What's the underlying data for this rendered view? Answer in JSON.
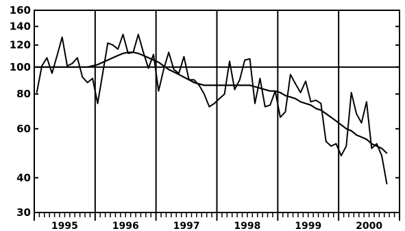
{
  "chart_data": {
    "type": "line",
    "title": "",
    "xlabel": "",
    "ylabel": "",
    "y_scale": "log",
    "ylim": [
      30,
      160
    ],
    "y_ticks": [
      {
        "value": 30,
        "label": "30"
      },
      {
        "value": 40,
        "label": "40"
      },
      {
        "value": 60,
        "label": "60"
      },
      {
        "value": 80,
        "label": "80"
      },
      {
        "value": 100,
        "label": "100"
      },
      {
        "value": 120,
        "label": "120"
      },
      {
        "value": 140,
        "label": "140"
      },
      {
        "value": 160,
        "label": "160"
      }
    ],
    "x_start": "1995-01",
    "x_end": "2000-11",
    "year_labels": [
      "1995",
      "1996",
      "1997",
      "1998",
      "1999",
      "2000"
    ],
    "reference_line": 100,
    "grid": "vertical lines at year boundaries, horizontal line at 100",
    "series": [
      {
        "style": "solid",
        "values": [
          81,
          101,
          108,
          95,
          110,
          128,
          101,
          103,
          108,
          92,
          88,
          91,
          74,
          95,
          122,
          120,
          116,
          131,
          112,
          113,
          131,
          113,
          99,
          111,
          82,
          98,
          113,
          98,
          95,
          109,
          90,
          90,
          86,
          80,
          72,
          74,
          77,
          80,
          105,
          83,
          90,
          106,
          107,
          74,
          91,
          72,
          73,
          82,
          66,
          69,
          94,
          87,
          81,
          89,
          75,
          76,
          74,
          54,
          52,
          53,
          48,
          52,
          81,
          68,
          63,
          75,
          51,
          53,
          48,
          38
        ]
      },
      {
        "style": "trend",
        "values": [
          100,
          100,
          100,
          100,
          100,
          100,
          100,
          100,
          100,
          100,
          100,
          101,
          102,
          104,
          106,
          108,
          110,
          112,
          113,
          113,
          112,
          110,
          108,
          106,
          104,
          101,
          98,
          96,
          94,
          92,
          90,
          88,
          87,
          86,
          86,
          86,
          86,
          86,
          86,
          86,
          86,
          86,
          86,
          85,
          84,
          83,
          82,
          82,
          81,
          79,
          78,
          77,
          75,
          74,
          73,
          71,
          70,
          68,
          66,
          64,
          62,
          60,
          59,
          57,
          56,
          55,
          53,
          52,
          51,
          49
        ]
      }
    ]
  }
}
